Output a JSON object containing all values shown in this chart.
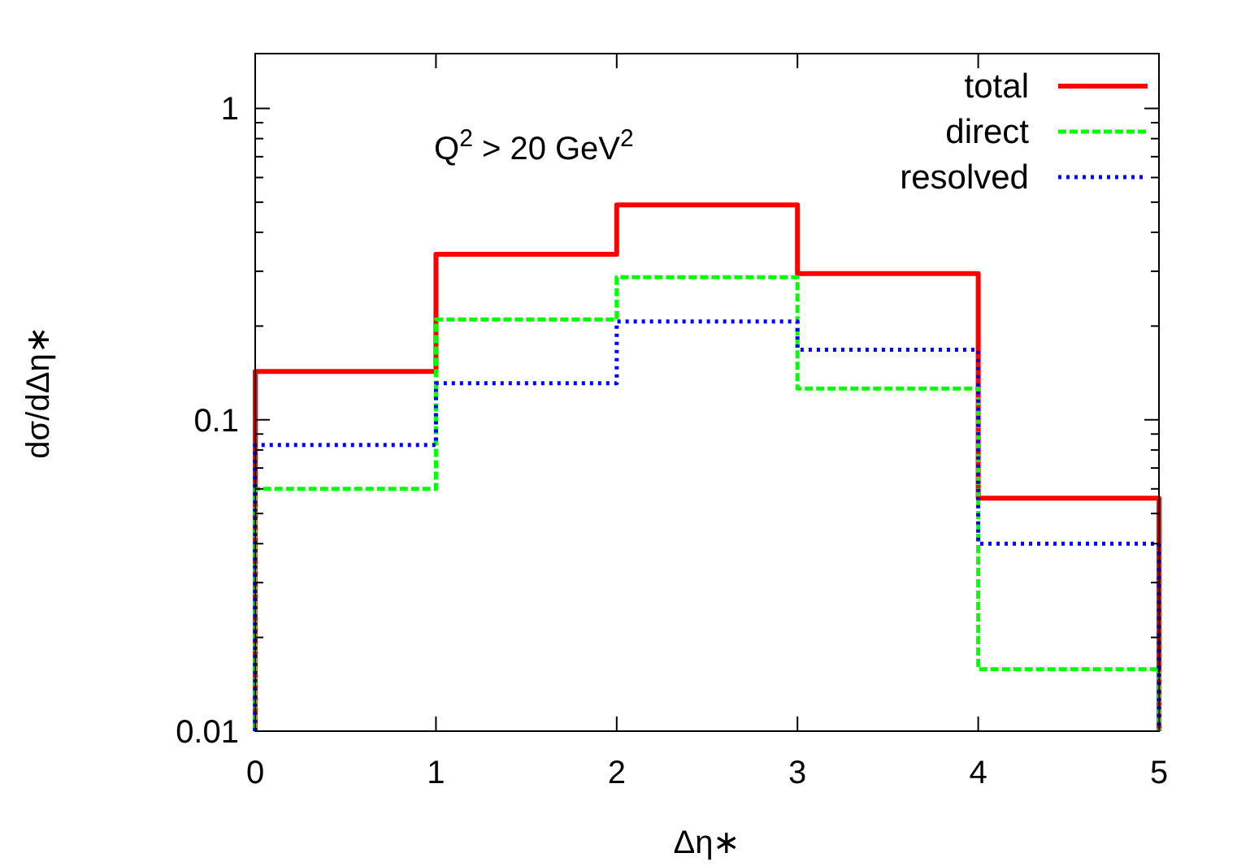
{
  "chart_data": {
    "type": "histogram",
    "xlabel": "Δη∗",
    "ylabel": "dσ/dΔη∗",
    "annotations": [
      "Q$^{2}$ > 20 GeV$^{2}$"
    ],
    "bins": [
      0,
      1,
      2,
      3,
      4,
      5
    ],
    "series": [
      {
        "name": "total",
        "color": "#ff0000",
        "line_style": "solid",
        "values": [
          0.143,
          0.34,
          0.49,
          0.295,
          0.056
        ]
      },
      {
        "name": "direct",
        "color": "#00ff00",
        "line_style": "dashed",
        "values": [
          0.06,
          0.21,
          0.287,
          0.126,
          0.0158
        ]
      },
      {
        "name": "resolved",
        "color": "#0000ff",
        "line_style": "dotted",
        "values": [
          0.083,
          0.131,
          0.207,
          0.168,
          0.04
        ]
      }
    ],
    "xlim": [
      0,
      5
    ],
    "xticks": [
      0,
      1,
      2,
      3,
      4,
      5
    ],
    "ylim": [
      0.01,
      1.5
    ],
    "log": true,
    "yticks": [
      0.01,
      {
        "value": 0.02,
        "label": null
      },
      {
        "value": 0.03,
        "label": null
      },
      {
        "value": 0.04,
        "label": null
      },
      {
        "value": 0.05,
        "label": null
      },
      {
        "value": 0.06,
        "label": null
      },
      {
        "value": 0.07,
        "label": null
      },
      {
        "value": 0.08,
        "label": null
      },
      {
        "value": 0.09,
        "label": null
      },
      0.1,
      {
        "value": 0.2,
        "label": null
      },
      {
        "value": 0.3,
        "label": null
      },
      {
        "value": 0.4,
        "label": null
      },
      {
        "value": 0.5,
        "label": null
      },
      {
        "value": 0.6,
        "label": null
      },
      {
        "value": 0.7,
        "label": null
      },
      {
        "value": 0.8,
        "label": null
      },
      {
        "value": 0.9,
        "label": null
      },
      1
    ],
    "grid": false,
    "legend": "top right"
  }
}
